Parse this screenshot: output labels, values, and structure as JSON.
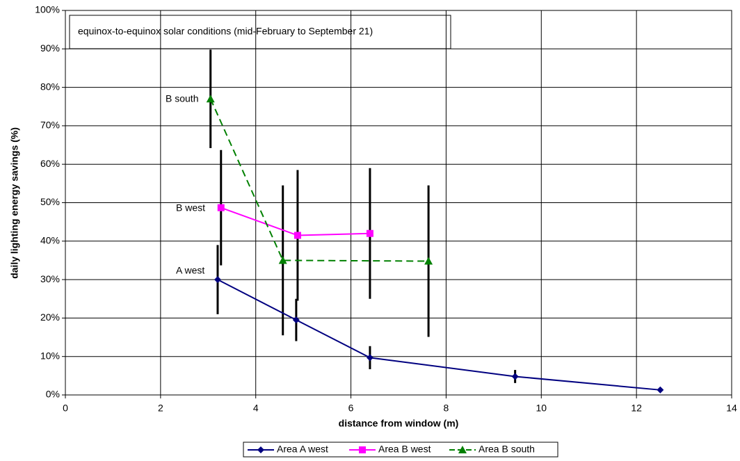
{
  "chart_data": {
    "type": "line",
    "annotations": [
      "equinox-to-equinox solar conditions (mid-February to September 21)",
      "B south",
      "B west",
      "A west"
    ],
    "xlabel": "distance from window (m)",
    "ylabel": "daily lighting energy savings (%)",
    "xlim": [
      0,
      14
    ],
    "xticks": [
      0,
      2,
      4,
      6,
      8,
      10,
      12,
      14
    ],
    "ylim": [
      0,
      100
    ],
    "yticks": [
      {
        "value": 0,
        "label": "0%"
      },
      {
        "value": 10,
        "label": "10%"
      },
      {
        "value": 20,
        "label": "20%"
      },
      {
        "value": 30,
        "label": "30%"
      },
      {
        "value": 40,
        "label": "40%"
      },
      {
        "value": 50,
        "label": "50%"
      },
      {
        "value": 60,
        "label": "60%"
      },
      {
        "value": 70,
        "label": "70%"
      },
      {
        "value": 80,
        "label": "80%"
      },
      {
        "value": 90,
        "label": "90%"
      },
      {
        "value": 100,
        "label": "100%"
      }
    ],
    "grid": true,
    "legend": "bottom",
    "series": [
      {
        "name": "Area A west",
        "color": "#000080",
        "marker": "diamond",
        "dash": "solid",
        "x": [
          3.2,
          4.85,
          6.4,
          9.45,
          12.5
        ],
        "values": [
          30,
          19.5,
          9.7,
          4.8,
          1.3
        ],
        "errors": [
          9,
          5.5,
          3,
          1.7,
          0
        ]
      },
      {
        "name": "Area B west",
        "color": "#ff00ff",
        "marker": "square",
        "dash": "solid",
        "x": [
          3.27,
          4.88,
          6.4
        ],
        "values": [
          48.7,
          41.5,
          42
        ],
        "errors": [
          15,
          17,
          17
        ]
      },
      {
        "name": "Area B south",
        "color": "#008000",
        "marker": "triangle",
        "dash": "dashed",
        "x": [
          3.05,
          4.57,
          7.63
        ],
        "values": [
          77,
          35,
          34.8
        ],
        "errors": [
          12.8,
          19.5,
          19.7
        ]
      }
    ]
  }
}
